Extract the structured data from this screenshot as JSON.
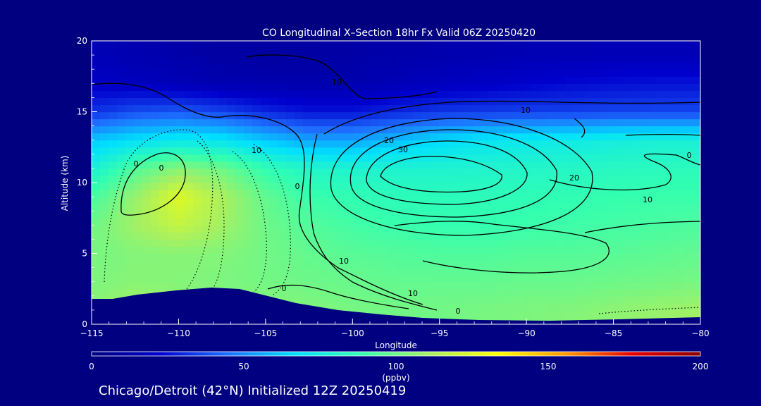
{
  "chart_data": {
    "type": "heatmap",
    "title": "CO Longitudinal X–Section 18hr  Fx Valid 06Z 20250420",
    "xlabel": "Longitude",
    "ylabel": "Altitude (km)",
    "xlim": [
      -115,
      -80
    ],
    "ylim": [
      0,
      20
    ],
    "x_ticks": [
      -115,
      -110,
      -105,
      -100,
      -95,
      -90,
      -85,
      -80
    ],
    "x_tick_labels": [
      "−115",
      "−110",
      "−105",
      "−100",
      "−95",
      "−90",
      "−85",
      "−80"
    ],
    "y_ticks": [
      0,
      5,
      10,
      15,
      20
    ],
    "y_tick_labels": [
      "0",
      "5",
      "10",
      "15",
      "20"
    ],
    "colorbar": {
      "min": 0,
      "max": 200,
      "ticks": [
        0,
        50,
        100,
        150,
        200
      ],
      "tick_labels": [
        "0",
        "50",
        "100",
        "150",
        "200"
      ],
      "unit": "(ppbv)",
      "colors": [
        "#000080",
        "#0000cd",
        "#1e6fff",
        "#00e0ff",
        "#33ffb0",
        "#a8f060",
        "#ffff00",
        "#ff9900",
        "#e60000",
        "#8b0000"
      ]
    },
    "co_field": {
      "lon": [
        -115,
        -112.5,
        -110,
        -107.5,
        -105,
        -102.5,
        -100,
        -97.5,
        -95,
        -92.5,
        -90,
        -87.5,
        -85,
        -82.5,
        -80
      ],
      "alt": [
        1,
        3,
        5,
        7,
        9,
        11,
        13,
        15,
        17,
        19
      ],
      "ppbv": [
        [
          105,
          112,
          110,
          108,
          106,
          104,
          102,
          101,
          101,
          102,
          103,
          104,
          106,
          108,
          110
        ],
        [
          103,
          105,
          104,
          103,
          101,
          100,
          99,
          98,
          98,
          98,
          99,
          99,
          100,
          101,
          102
        ],
        [
          102,
          104,
          105,
          104,
          101,
          98,
          96,
          95,
          94,
          94,
          95,
          95,
          96,
          97,
          98
        ],
        [
          100,
          110,
          118,
          110,
          100,
          95,
          92,
          90,
          89,
          89,
          90,
          91,
          92,
          93,
          94
        ],
        [
          92,
          108,
          125,
          112,
          98,
          90,
          88,
          86,
          86,
          86,
          87,
          88,
          89,
          90,
          90
        ],
        [
          78,
          95,
          105,
          100,
          88,
          82,
          80,
          80,
          80,
          81,
          82,
          83,
          84,
          85,
          86
        ],
        [
          62,
          68,
          72,
          70,
          62,
          55,
          55,
          60,
          66,
          70,
          72,
          74,
          76,
          78,
          78
        ],
        [
          32,
          38,
          40,
          36,
          30,
          26,
          26,
          30,
          33,
          34,
          35,
          35,
          36,
          36,
          36
        ],
        [
          20,
          18,
          16,
          14,
          13,
          13,
          13,
          16,
          18,
          20,
          22,
          24,
          25,
          26,
          26
        ],
        [
          16,
          14,
          12,
          10,
          10,
          10,
          11,
          12,
          13,
          14,
          15,
          15,
          16,
          16,
          16
        ]
      ]
    },
    "contour_labels": [
      "0",
      "10",
      "20",
      "30",
      "10",
      "10",
      "20",
      "10",
      "0",
      "10",
      "0",
      "10",
      "0",
      "0",
      "0"
    ]
  },
  "footer_text": "Chicago/Detroit (42°N) Initialized 12Z 20250419"
}
